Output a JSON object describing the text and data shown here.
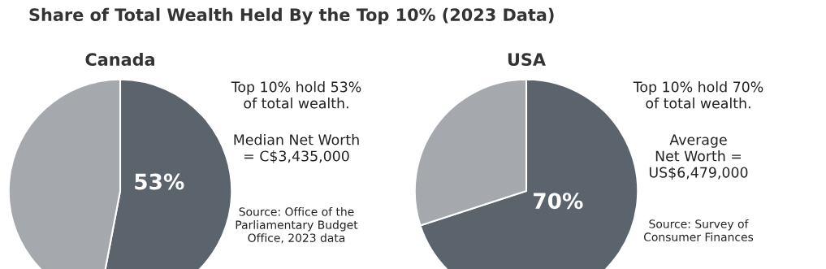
{
  "chart_data": [
    {
      "type": "pie",
      "title": "Share of Total Wealth Held By the Top 10% (2023 Data)",
      "subtitle": "Canada",
      "categories": [
        null,
        null
      ],
      "values": [
        53,
        47
      ],
      "colors": [
        "#5b636d",
        "#a5a9ae"
      ],
      "value_labels": [
        "53%",
        null
      ],
      "annotations": [
        "Top 10% hold 53%\nof total wealth.",
        "Median Net Worth\n= C$3,435,000",
        "Source: Office of the\nParliamentary Budget\nOffice, 2023 data"
      ]
    },
    {
      "type": "pie",
      "subtitle": "USA",
      "categories": [
        null,
        null
      ],
      "values": [
        70,
        30
      ],
      "colors": [
        "#5b636d",
        "#a5a9ae"
      ],
      "value_labels": [
        "70%",
        null
      ],
      "annotations": [
        "Top 10% hold 70%\nof total wealth.",
        "Average\nNet Worth =\nUS$6,479,000",
        "Source: Survey of\nConsumer Finances"
      ]
    }
  ]
}
